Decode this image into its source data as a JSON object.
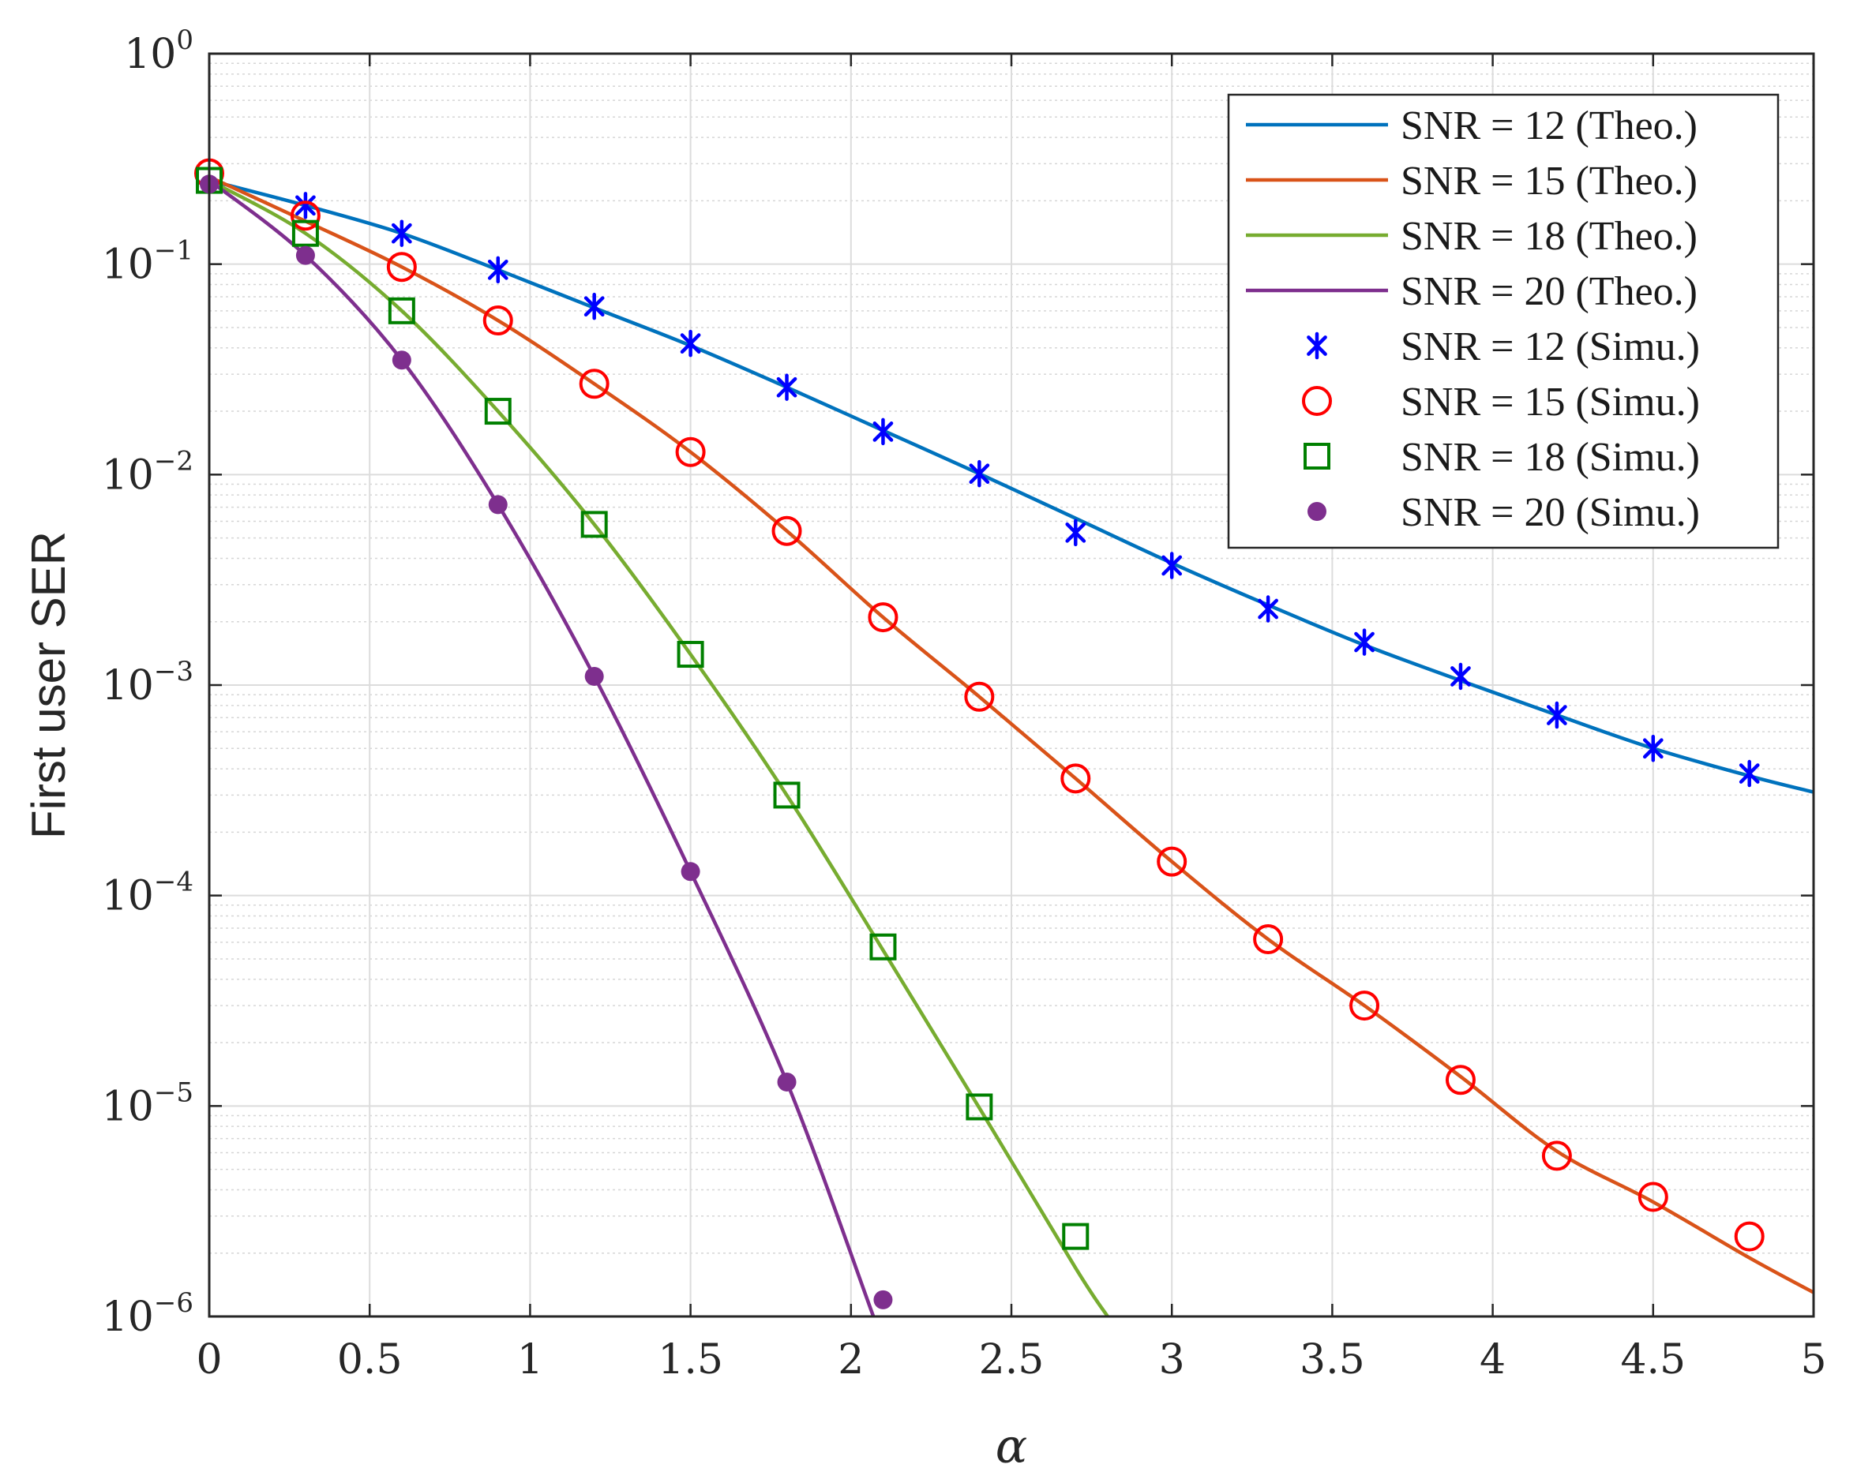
{
  "chart_data": {
    "type": "line",
    "xlabel": "α",
    "ylabel": "First user SER",
    "xlim": [
      0,
      5
    ],
    "ylim": [
      1e-06,
      1
    ],
    "yscale": "log",
    "grid": true,
    "minor_grid": true,
    "legend_position": "top-right",
    "x_ticks": [
      {
        "value": 0,
        "label": "0"
      },
      {
        "value": 0.5,
        "label": "0.5"
      },
      {
        "value": 1,
        "label": "1"
      },
      {
        "value": 1.5,
        "label": "1.5"
      },
      {
        "value": 2,
        "label": "2"
      },
      {
        "value": 2.5,
        "label": "2.5"
      },
      {
        "value": 3,
        "label": "3"
      },
      {
        "value": 3.5,
        "label": "3.5"
      },
      {
        "value": 4,
        "label": "4"
      },
      {
        "value": 4.5,
        "label": "4.5"
      },
      {
        "value": 5,
        "label": "5"
      }
    ],
    "y_ticks": [
      {
        "value": 1,
        "base": "10",
        "exp": "0"
      },
      {
        "value": 0.1,
        "base": "10",
        "exp": "−1"
      },
      {
        "value": 0.01,
        "base": "10",
        "exp": "−2"
      },
      {
        "value": 0.001,
        "base": "10",
        "exp": "−3"
      },
      {
        "value": 0.0001,
        "base": "10",
        "exp": "−4"
      },
      {
        "value": 1e-05,
        "base": "10",
        "exp": "−5"
      },
      {
        "value": 1e-06,
        "base": "10",
        "exp": "−6"
      }
    ],
    "series": [
      {
        "name": "SNR = 12 (Theo.)",
        "kind": "line",
        "color": "#0072BD",
        "x": [
          0,
          0.3,
          0.6,
          0.9,
          1.2,
          1.5,
          1.8,
          2.1,
          2.4,
          2.7,
          3.0,
          3.3,
          3.6,
          3.9,
          4.2,
          4.5,
          4.8,
          5.0
        ],
        "y": [
          0.25,
          0.19,
          0.14,
          0.094,
          0.062,
          0.041,
          0.026,
          0.0162,
          0.0101,
          0.0062,
          0.0038,
          0.0024,
          0.00155,
          0.00105,
          0.00072,
          0.0005,
          0.00037,
          0.00031
        ]
      },
      {
        "name": "SNR = 15 (Theo.)",
        "kind": "line",
        "color": "#D95319",
        "x": [
          0,
          0.3,
          0.6,
          0.9,
          1.2,
          1.5,
          1.8,
          2.1,
          2.4,
          2.7,
          3.0,
          3.3,
          3.6,
          3.9,
          4.2,
          4.5,
          4.8,
          5.0
        ],
        "y": [
          0.26,
          0.16,
          0.097,
          0.054,
          0.027,
          0.0128,
          0.0054,
          0.0021,
          0.00088,
          0.00036,
          0.000145,
          6.2e-05,
          3e-05,
          1.38e-05,
          6.1e-06,
          3.5e-06,
          1.9e-06,
          1.3e-06
        ]
      },
      {
        "name": "SNR = 18 (Theo.)",
        "kind": "line",
        "color": "#77AC30",
        "x": [
          0,
          0.3,
          0.6,
          0.9,
          1.2,
          1.5,
          1.8,
          2.1,
          2.4,
          2.7,
          2.8
        ],
        "y": [
          0.25,
          0.14,
          0.06,
          0.02,
          0.0058,
          0.0014,
          0.0003,
          5.5e-05,
          9.8e-06,
          1.7e-06,
          1e-06
        ]
      },
      {
        "name": "SNR = 20 (Theo.)",
        "kind": "line",
        "color": "#7E2F8E",
        "x": [
          0,
          0.3,
          0.6,
          0.9,
          1.2,
          1.5,
          1.8,
          2.07
        ],
        "y": [
          0.25,
          0.11,
          0.035,
          0.0072,
          0.0011,
          0.00013,
          1.3e-05,
          1e-06
        ]
      },
      {
        "name": "SNR = 12 (Simu.)",
        "kind": "marker",
        "marker": "asterisk",
        "color": "#0000FF",
        "x": [
          0.3,
          0.6,
          0.9,
          1.2,
          1.5,
          1.8,
          2.1,
          2.4,
          2.7,
          3.0,
          3.3,
          3.6,
          3.9,
          4.2,
          4.5,
          4.8
        ],
        "y": [
          0.19,
          0.14,
          0.094,
          0.063,
          0.042,
          0.026,
          0.016,
          0.0101,
          0.0053,
          0.0037,
          0.0023,
          0.0016,
          0.0011,
          0.00072,
          0.0005,
          0.00038
        ]
      },
      {
        "name": "SNR = 15 (Simu.)",
        "kind": "marker",
        "marker": "circle",
        "color": "#FF0000",
        "x": [
          0,
          0.3,
          0.6,
          0.9,
          1.2,
          1.5,
          1.8,
          2.1,
          2.4,
          2.7,
          3.0,
          3.3,
          3.6,
          3.9,
          4.2,
          4.5,
          4.8
        ],
        "y": [
          0.27,
          0.17,
          0.097,
          0.054,
          0.027,
          0.0128,
          0.0054,
          0.0021,
          0.00088,
          0.00036,
          0.000145,
          6.2e-05,
          3e-05,
          1.33e-05,
          5.8e-06,
          3.7e-06,
          2.4e-06
        ]
      },
      {
        "name": "SNR = 18 (Simu.)",
        "kind": "marker",
        "marker": "square",
        "color": "#008000",
        "x": [
          0,
          0.3,
          0.6,
          0.9,
          1.2,
          1.5,
          1.8,
          2.1,
          2.4,
          2.7
        ],
        "y": [
          0.25,
          0.14,
          0.06,
          0.02,
          0.0058,
          0.0014,
          0.0003,
          5.7e-05,
          9.9e-06,
          2.4e-06
        ]
      },
      {
        "name": "SNR = 20 (Simu.)",
        "kind": "marker",
        "marker": "dot",
        "color": "#7E2F8E",
        "x": [
          0,
          0.3,
          0.6,
          0.9,
          1.2,
          1.5,
          1.8,
          2.1
        ],
        "y": [
          0.24,
          0.11,
          0.035,
          0.0072,
          0.0011,
          0.00013,
          1.3e-05,
          1.2e-06
        ]
      }
    ]
  }
}
